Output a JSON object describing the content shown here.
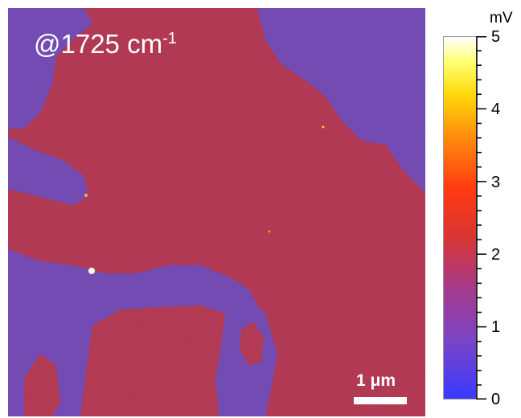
{
  "image": {
    "label_main": "@1725 cm",
    "label_superscript": "-1",
    "scale_bar_label": "1 μm",
    "colorbar": {
      "unit": "mV",
      "ticks": [
        "0",
        "1",
        "2",
        "3",
        "4",
        "5"
      ],
      "range": [
        0,
        5
      ]
    },
    "colors": {
      "background_red": "#b03248",
      "domain_purple": "#6a44b0",
      "label_white": "#ffffff"
    }
  }
}
